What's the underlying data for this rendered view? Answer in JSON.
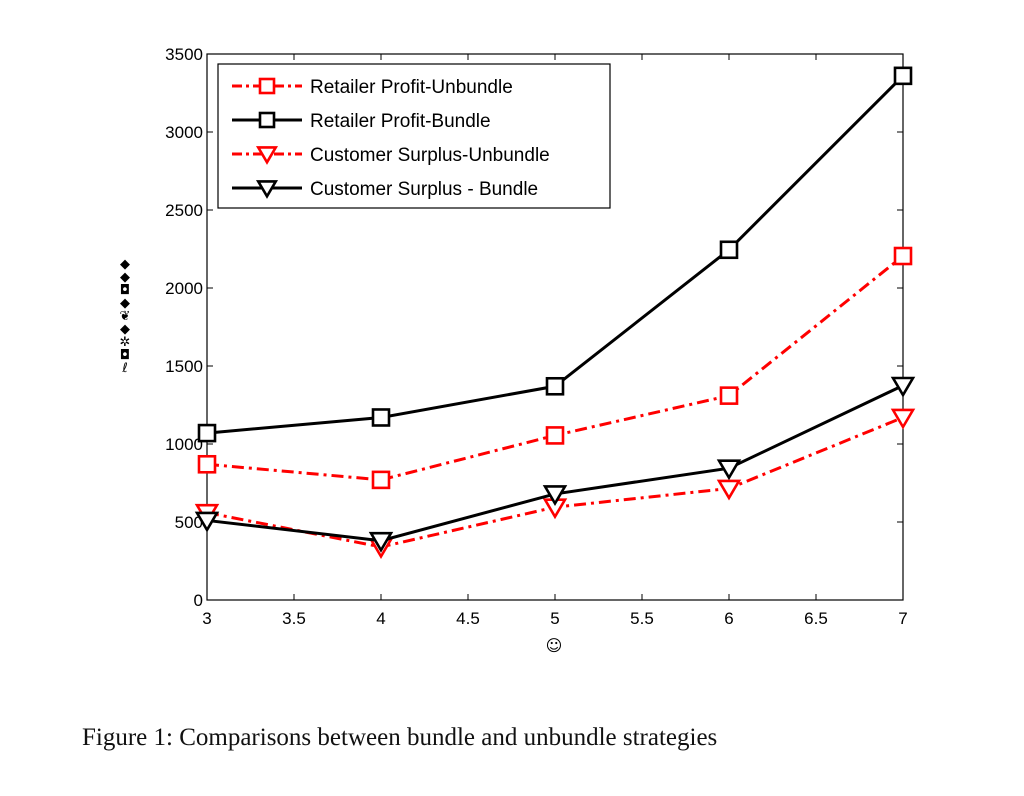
{
  "caption": "Figure 1: Comparisons between bundle and unbundle strategies",
  "ylabel_glyphs": [
    "◆",
    "◆",
    "◘",
    "◆",
    "❦",
    "◆",
    "✲",
    "◘",
    "ℓ"
  ],
  "xlabel_glyph": "☺",
  "chart_data": {
    "type": "line",
    "title": "",
    "xlabel": "☺",
    "ylabel": "(garbled symbol text)",
    "x": [
      3,
      4,
      5,
      6,
      7
    ],
    "xlim": [
      3,
      7
    ],
    "ylim": [
      0,
      3500
    ],
    "xticks": [
      3,
      3.5,
      4,
      4.5,
      5,
      5.5,
      6,
      6.5,
      7
    ],
    "xtick_labels": [
      "3",
      "3.5",
      "4",
      "4.5",
      "5",
      "5.5",
      "6",
      "6.5",
      "7"
    ],
    "yticks": [
      0,
      500,
      1000,
      1500,
      2000,
      2500,
      3000,
      3500
    ],
    "ytick_labels": [
      "0",
      "500",
      "1000",
      "1500",
      "2000",
      "2500",
      "3000",
      "3500"
    ],
    "grid": false,
    "legend_position": "upper left",
    "series": [
      {
        "name": "Retailer Profit-Unbundle",
        "values": [
          870,
          770,
          1055,
          1310,
          2205
        ],
        "color": "#ff0000",
        "linestyle": "dashdot",
        "marker": "square"
      },
      {
        "name": "Retailer Profit-Bundle",
        "values": [
          1070,
          1170,
          1370,
          2245,
          3360
        ],
        "color": "#000000",
        "linestyle": "solid",
        "marker": "square"
      },
      {
        "name": "Customer Surplus-Unbundle",
        "values": [
          560,
          340,
          595,
          715,
          1170
        ],
        "color": "#ff0000",
        "linestyle": "dashdot",
        "marker": "triangle-down"
      },
      {
        "name": "Customer Surplus - Bundle",
        "values": [
          510,
          380,
          680,
          845,
          1375
        ],
        "color": "#000000",
        "linestyle": "solid",
        "marker": "triangle-down"
      }
    ]
  }
}
